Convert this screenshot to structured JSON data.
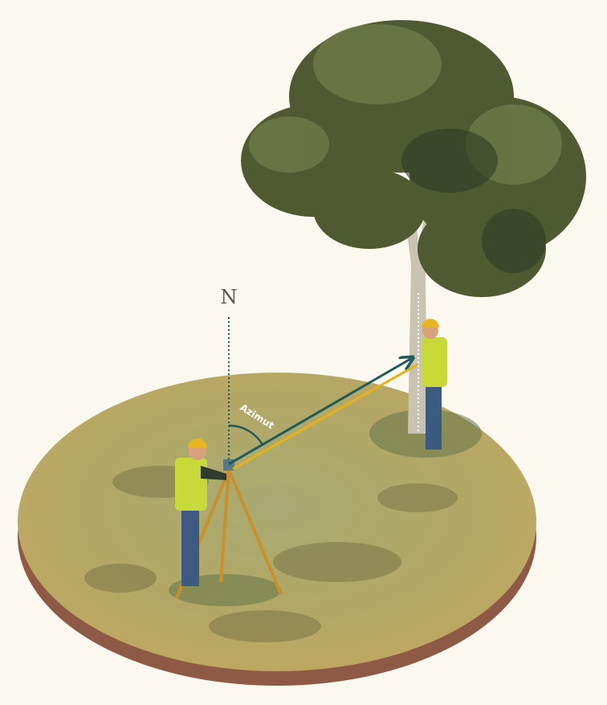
{
  "labels": {
    "north": "N",
    "angle": "Azimut"
  }
}
